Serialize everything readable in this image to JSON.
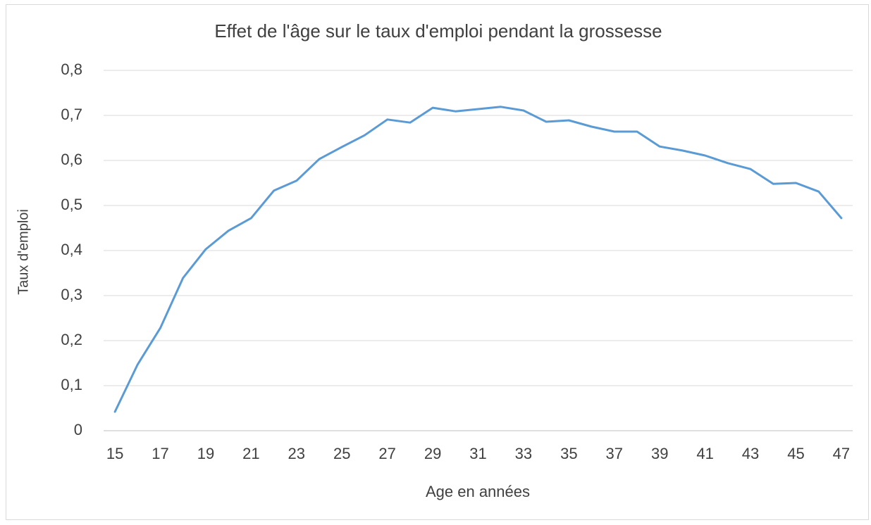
{
  "chart_data": {
    "type": "line",
    "title": "Effet de l'âge sur le taux d'emploi pendant la grossesse",
    "x_label": "Age en années",
    "y_label": "Taux d'emploi",
    "categories": [
      "15",
      null,
      "17",
      null,
      "19",
      null,
      "21",
      null,
      "23",
      null,
      "25",
      null,
      "27",
      null,
      "29",
      null,
      "31",
      null,
      "33",
      null,
      "35",
      null,
      "37",
      null,
      "39",
      null,
      "41",
      null,
      "43",
      null,
      "45",
      null,
      "47"
    ],
    "values": [
      0.042,
      0.147,
      0.228,
      0.339,
      0.403,
      0.444,
      0.472,
      0.533,
      0.555,
      0.603,
      0.63,
      0.656,
      0.691,
      0.684,
      0.717,
      0.709,
      0.714,
      0.719,
      0.711,
      0.686,
      0.689,
      0.675,
      0.664,
      0.664,
      0.631,
      0.622,
      0.611,
      0.594,
      0.581,
      0.548,
      0.55,
      0.531,
      0.472
    ],
    "color": "#5b9bd5",
    "ylim": [
      0,
      0.8
    ],
    "yticks": [
      0,
      {
        "value": 0.1,
        "label": "0,1"
      },
      {
        "value": 0.2,
        "label": "0,2"
      },
      {
        "value": 0.3,
        "label": "0,3"
      },
      {
        "value": 0.4,
        "label": "0,4"
      },
      {
        "value": 0.5,
        "label": "0,5"
      },
      {
        "value": 0.6,
        "label": "0,6"
      },
      {
        "value": 0.7,
        "label": "0,7"
      },
      {
        "value": 0.8,
        "label": "0,8"
      }
    ],
    "grid": true
  }
}
